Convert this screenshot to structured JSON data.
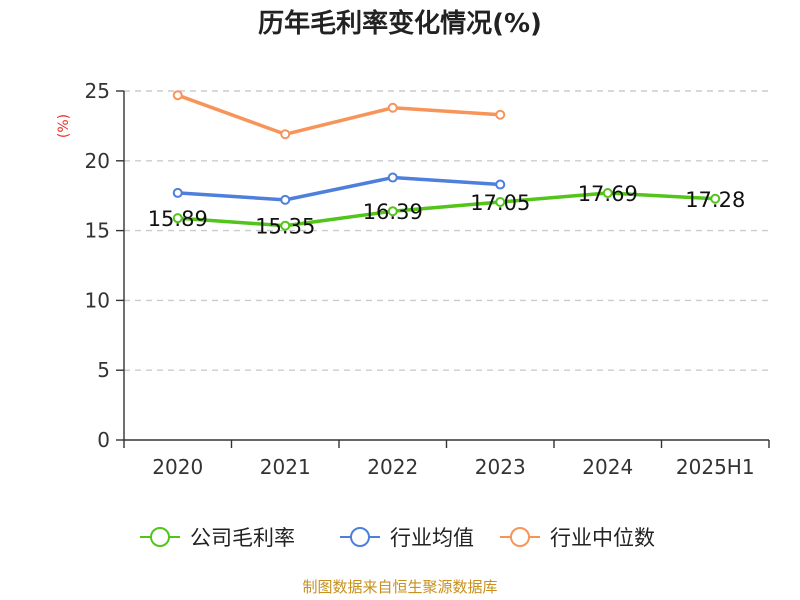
{
  "chart_data": {
    "type": "line",
    "title": "历年毛利率变化情况(%)",
    "ylabel": "(%)",
    "xlabel": "",
    "categories": [
      "2020",
      "2021",
      "2022",
      "2023",
      "2024",
      "2025H1"
    ],
    "ylim": [
      0,
      25
    ],
    "yticks": [
      0,
      5,
      10,
      15,
      20,
      25
    ],
    "grid": true,
    "legend_position": "bottom",
    "series": [
      {
        "name": "公司毛利率",
        "color": "#52c41a",
        "values": [
          15.89,
          15.35,
          16.39,
          17.05,
          17.69,
          17.28
        ],
        "labels": [
          "15.89",
          "15.35",
          "16.39",
          "17.05",
          "17.69",
          "17.28"
        ]
      },
      {
        "name": "行业均值",
        "color": "#4f7fdc",
        "values": [
          17.7,
          17.2,
          18.8,
          18.3,
          null,
          null
        ]
      },
      {
        "name": "行业中位数",
        "color": "#f7945a",
        "values": [
          24.7,
          21.9,
          23.8,
          23.3,
          null,
          null
        ]
      }
    ]
  },
  "source_text": "制图数据来自恒生聚源数据库",
  "colors": {
    "unit_label": "#e8332a",
    "source_text": "#c8901e",
    "grid": "#cccccc",
    "axis": "#333333"
  }
}
